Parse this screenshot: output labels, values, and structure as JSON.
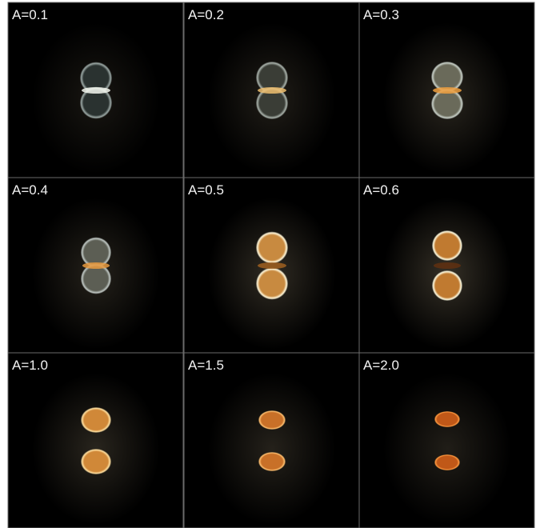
{
  "panels": [
    {
      "label": "A=0.1"
    },
    {
      "label": "A=0.2"
    },
    {
      "label": "A=0.3"
    },
    {
      "label": "A=0.4"
    },
    {
      "label": "A=0.5"
    },
    {
      "label": "A=0.6"
    },
    {
      "label": "A=1.0"
    },
    {
      "label": "A=1.5"
    },
    {
      "label": "A=2.0"
    }
  ]
}
